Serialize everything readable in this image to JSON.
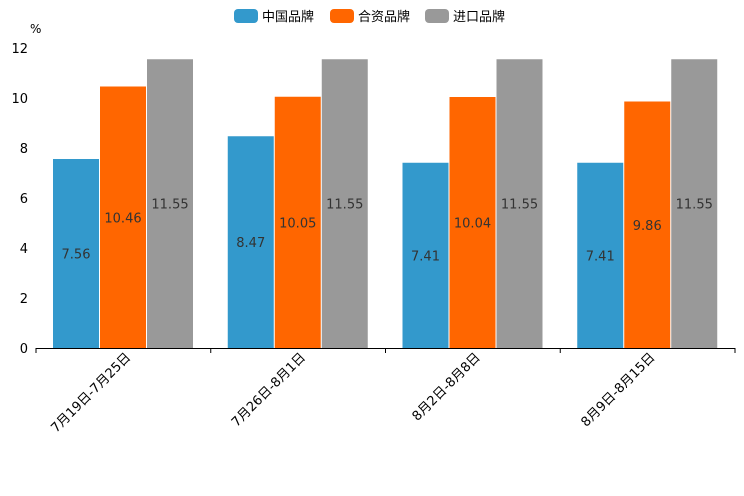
{
  "chart_data": {
    "type": "bar",
    "title": "",
    "ylabel": "%",
    "xlabel": "",
    "ylim": [
      0,
      12
    ],
    "yticks": [
      0,
      2,
      4,
      6,
      8,
      10,
      12
    ],
    "grid": false,
    "legend_position": "top-center",
    "categories": [
      "7月19日-7月25日",
      "7月26日-8月1日",
      "8月2日-8月8日",
      "8月9日-8月15日"
    ],
    "series": [
      {
        "name": "中国品牌",
        "color": "#3399CC",
        "values": [
          7.56,
          8.47,
          7.41,
          7.41
        ]
      },
      {
        "name": "合资品牌",
        "color": "#FF6600",
        "values": [
          10.46,
          10.05,
          10.04,
          9.86
        ]
      },
      {
        "name": "进口品牌",
        "color": "#999999",
        "values": [
          11.55,
          11.55,
          11.55,
          11.55
        ]
      }
    ]
  }
}
